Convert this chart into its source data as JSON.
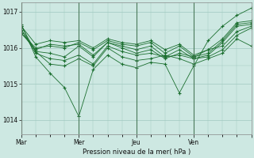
{
  "bg_color": "#cde8e2",
  "grid_color": "#a0c8c0",
  "line_color": "#1a6e2e",
  "marker_color": "#1a6e2e",
  "xlabel": "Pression niveau de la mer( hPa )",
  "yticks": [
    1014,
    1015,
    1016,
    1017
  ],
  "xlim": [
    0,
    96
  ],
  "ylim": [
    1013.6,
    1017.25
  ],
  "day_positions": [
    0,
    24,
    48,
    72,
    96
  ],
  "day_labels": [
    "Mar",
    "Mer",
    "Jeu",
    "Ven",
    ""
  ],
  "series": [
    [
      0,
      1016.65,
      6,
      1015.75,
      12,
      1015.3,
      18,
      1014.9,
      24,
      1014.1,
      30,
      1015.4,
      36,
      1015.8,
      42,
      1015.55,
      48,
      1015.45,
      54,
      1015.6,
      60,
      1015.55,
      66,
      1014.75,
      72,
      1015.5,
      78,
      1016.2,
      84,
      1016.6,
      90,
      1016.9,
      96,
      1017.1
    ],
    [
      0,
      1016.6,
      6,
      1015.9,
      12,
      1015.55,
      18,
      1015.5,
      24,
      1015.7,
      30,
      1015.5,
      36,
      1016.0,
      42,
      1015.75,
      48,
      1015.65,
      54,
      1015.7,
      60,
      1015.8,
      66,
      1015.7,
      72,
      1015.55,
      78,
      1015.7,
      84,
      1015.85,
      90,
      1016.25,
      96,
      1016.05
    ],
    [
      0,
      1016.5,
      6,
      1015.85,
      12,
      1015.7,
      18,
      1015.65,
      24,
      1015.8,
      30,
      1015.55,
      36,
      1016.05,
      42,
      1015.9,
      48,
      1015.8,
      54,
      1015.85,
      60,
      1015.75,
      66,
      1015.8,
      72,
      1015.7,
      78,
      1015.75,
      84,
      1015.95,
      90,
      1016.35,
      96,
      1016.55
    ],
    [
      0,
      1016.5,
      6,
      1015.9,
      12,
      1015.85,
      18,
      1015.75,
      24,
      1016.05,
      30,
      1015.75,
      36,
      1016.15,
      42,
      1016.0,
      48,
      1015.85,
      54,
      1015.95,
      60,
      1015.7,
      66,
      1015.85,
      72,
      1015.75,
      78,
      1015.95,
      84,
      1016.05,
      90,
      1016.45,
      96,
      1016.6
    ],
    [
      0,
      1016.4,
      6,
      1015.95,
      12,
      1016.1,
      18,
      1016.05,
      24,
      1016.1,
      30,
      1015.8,
      36,
      1016.15,
      42,
      1016.05,
      48,
      1015.95,
      54,
      1016.05,
      60,
      1015.75,
      66,
      1015.95,
      72,
      1015.7,
      78,
      1015.8,
      84,
      1016.15,
      90,
      1016.6,
      96,
      1016.65
    ],
    [
      0,
      1016.4,
      6,
      1016.0,
      12,
      1016.05,
      18,
      1016.0,
      24,
      1016.15,
      30,
      1015.95,
      36,
      1016.2,
      42,
      1016.1,
      48,
      1016.05,
      54,
      1016.15,
      60,
      1015.85,
      66,
      1016.05,
      72,
      1015.75,
      78,
      1015.85,
      84,
      1016.2,
      90,
      1016.65,
      96,
      1016.7
    ],
    [
      0,
      1016.6,
      6,
      1016.1,
      12,
      1016.2,
      18,
      1016.15,
      24,
      1016.2,
      30,
      1016.0,
      36,
      1016.25,
      42,
      1016.15,
      48,
      1016.1,
      54,
      1016.2,
      60,
      1015.95,
      66,
      1016.1,
      72,
      1015.8,
      78,
      1015.95,
      84,
      1016.25,
      90,
      1016.7,
      96,
      1016.75
    ]
  ]
}
